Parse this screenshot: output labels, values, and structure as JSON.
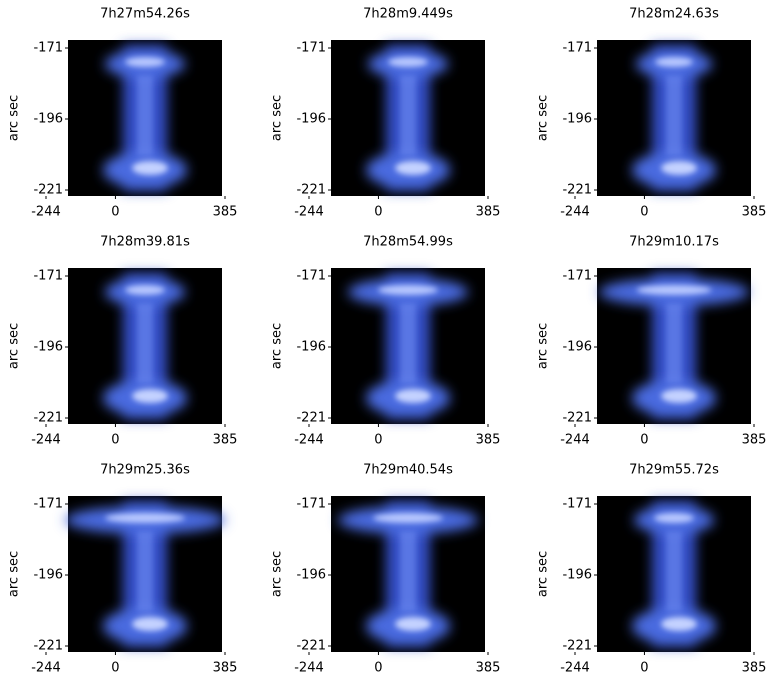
{
  "panels": [
    {
      "title": "7h27m54.26s",
      "y_label": "arc sec",
      "xticks": [
        -244,
        0,
        385
      ],
      "yticks": [
        -171,
        -196,
        -221
      ]
    },
    {
      "title": "7h28m9.449s",
      "y_label": "arc sec",
      "xticks": [
        -244,
        0,
        385
      ],
      "yticks": [
        -171,
        -196,
        -221
      ]
    },
    {
      "title": "7h28m24.63s",
      "y_label": "arc sec",
      "xticks": [
        -244,
        0,
        385
      ],
      "yticks": [
        -171,
        -196,
        -221
      ]
    },
    {
      "title": "7h28m39.81s",
      "y_label": "arc sec",
      "xticks": [
        -244,
        0,
        385
      ],
      "yticks": [
        -171,
        -196,
        -221
      ]
    },
    {
      "title": "7h28m54.99s",
      "y_label": "arc sec",
      "xticks": [
        -244,
        0,
        385
      ],
      "yticks": [
        -171,
        -196,
        -221
      ]
    },
    {
      "title": "7h29m10.17s",
      "y_label": "arc sec",
      "xticks": [
        -244,
        0,
        385
      ],
      "yticks": [
        -171,
        -196,
        -221
      ]
    },
    {
      "title": "7h29m25.36s",
      "y_label": "arc sec",
      "xticks": [
        -244,
        0,
        385
      ],
      "yticks": [
        -171,
        -196,
        -221
      ]
    },
    {
      "title": "7h29m40.54s",
      "y_label": "arc sec",
      "xticks": [
        -244,
        0,
        385
      ],
      "yticks": [
        -171,
        -196,
        -221
      ]
    },
    {
      "title": "7h29m55.72s",
      "y_label": "arc sec",
      "xticks": [
        -244,
        0,
        385
      ],
      "yticks": [
        -171,
        -196,
        -221
      ]
    }
  ]
}
